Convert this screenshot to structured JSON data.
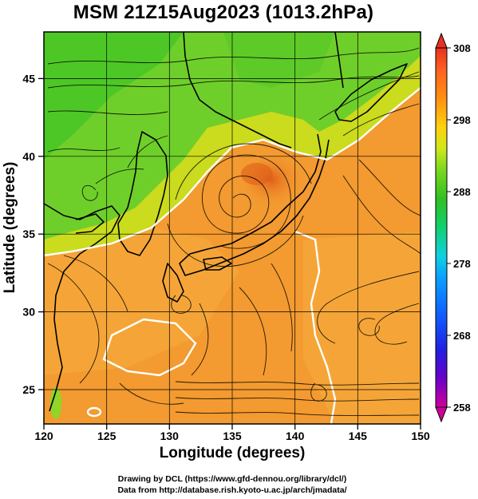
{
  "title": "MSM 21Z15Aug2023 (1013.2hPa)",
  "xlabel": "Longitude (degrees)",
  "ylabel": "Latitude  (degrees)",
  "credits": [
    "Drawing by DCL (https://www.gfd-dennou.org/library/dcl/)",
    "Data from http://database.rish.kyoto-u.ac.jp/arch/jmadata/"
  ],
  "map": {
    "projection": "equirectangular",
    "lon_range": [
      120,
      150
    ],
    "lat_range": [
      22.4,
      47.6
    ],
    "lon_ticks": [
      "120",
      "125",
      "130",
      "135",
      "140",
      "145",
      "150"
    ],
    "lat_ticks": [
      "25",
      "30",
      "35",
      "40",
      "45"
    ],
    "grid_lon": [
      125,
      130,
      135,
      140,
      145
    ],
    "grid_lat": [
      25,
      30,
      35,
      40,
      45
    ],
    "field": "temperature (K) shaded, wind streamlines, white 298 K contour",
    "colorbar": {
      "min": 258,
      "max": 308,
      "tick_labels": [
        "308",
        "298",
        "288",
        "278",
        "268",
        "258"
      ],
      "colors": [
        "#d0009a",
        "#6a00c8",
        "#2020e0",
        "#1060ff",
        "#0aa0ff",
        "#10d0e0",
        "#10d070",
        "#30c020",
        "#7ad820",
        "#d0e81a",
        "#ffd010",
        "#ff9010",
        "#ff6020",
        "#e83020"
      ]
    },
    "typhoon_center": {
      "lon": 135.0,
      "lat": 37.7
    }
  }
}
